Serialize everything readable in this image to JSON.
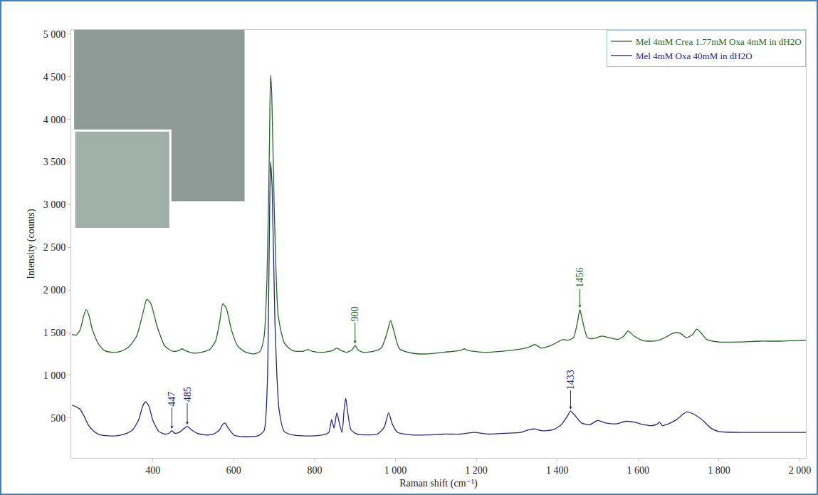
{
  "chart_data": {
    "type": "line",
    "x_label": "Raman shift (cm⁻¹)",
    "y_label": "Intensity (counts)",
    "xlim": [
      198,
      2015
    ],
    "ylim": [
      30,
      5050
    ],
    "xticks": [
      400,
      600,
      800,
      {
        "value": 1000,
        "label": "1 000"
      },
      {
        "value": 1200,
        "label": "1 200"
      },
      {
        "value": 1400,
        "label": "1 400"
      },
      {
        "value": 1600,
        "label": "1 600"
      },
      {
        "value": 1800,
        "label": "1 800"
      },
      {
        "value": 2000,
        "label": "2 000"
      }
    ],
    "yticks": [
      500,
      {
        "value": 1000,
        "label": "1 000"
      },
      {
        "value": 1500,
        "label": "1 500"
      },
      {
        "value": 2000,
        "label": "2 000"
      },
      {
        "value": 2500,
        "label": "2 500"
      },
      {
        "value": 3000,
        "label": "3 000"
      },
      {
        "value": 3500,
        "label": "3 500"
      },
      {
        "value": 4000,
        "label": "4 000"
      },
      {
        "value": 4500,
        "label": "4 500"
      },
      {
        "value": 5000,
        "label": "5 000"
      }
    ],
    "grid": false,
    "legend": "top right",
    "series": [
      {
        "name": "Mel 4mM Crea 1.77mM Oxa 4mM in dH2O",
        "color": "#1e6b1e",
        "x": [
          200,
          210,
          220,
          228,
          235,
          242,
          250,
          265,
          280,
          300,
          320,
          340,
          360,
          375,
          385,
          395,
          410,
          430,
          450,
          465,
          472,
          480,
          500,
          520,
          540,
          555,
          565,
          573,
          582,
          595,
          610,
          630,
          650,
          665,
          675,
          682,
          688,
          691,
          694,
          700,
          710,
          725,
          745,
          770,
          783,
          795,
          820,
          845,
          855,
          865,
          880,
          893,
          900,
          907,
          920,
          945,
          965,
          978,
          988,
          996,
          1010,
          1040,
          1080,
          1120,
          1160,
          1170,
          1180,
          1220,
          1260,
          1300,
          1330,
          1345,
          1360,
          1385,
          1405,
          1415,
          1425,
          1440,
          1450,
          1456,
          1462,
          1475,
          1490,
          1510,
          1530,
          1550,
          1565,
          1575,
          1590,
          1610,
          1630,
          1650,
          1670,
          1685,
          1695,
          1705,
          1720,
          1735,
          1745,
          1755,
          1770,
          1800,
          1850,
          1900,
          1950,
          2000,
          2015
        ],
        "values": [
          1480,
          1470,
          1530,
          1680,
          1770,
          1700,
          1540,
          1370,
          1290,
          1270,
          1280,
          1330,
          1460,
          1720,
          1890,
          1840,
          1580,
          1340,
          1280,
          1290,
          1310,
          1290,
          1260,
          1270,
          1300,
          1400,
          1620,
          1840,
          1780,
          1520,
          1340,
          1270,
          1250,
          1280,
          1450,
          2100,
          3600,
          4520,
          4300,
          3000,
          1700,
          1380,
          1290,
          1280,
          1300,
          1280,
          1270,
          1290,
          1320,
          1290,
          1270,
          1300,
          1350,
          1300,
          1270,
          1280,
          1320,
          1480,
          1640,
          1520,
          1310,
          1260,
          1250,
          1270,
          1290,
          1310,
          1290,
          1270,
          1280,
          1300,
          1330,
          1360,
          1320,
          1350,
          1400,
          1420,
          1410,
          1440,
          1620,
          1770,
          1650,
          1440,
          1430,
          1460,
          1440,
          1420,
          1460,
          1520,
          1460,
          1410,
          1400,
          1410,
          1450,
          1490,
          1500,
          1490,
          1440,
          1480,
          1540,
          1500,
          1420,
          1390,
          1390,
          1400,
          1400,
          1410,
          1410
        ]
      },
      {
        "name": "Mel 4mM Oxa 40mM in dH2O",
        "color": "#25258a",
        "x": [
          200,
          210,
          220,
          230,
          240,
          255,
          270,
          290,
          310,
          330,
          350,
          365,
          375,
          382,
          390,
          400,
          415,
          430,
          440,
          447,
          454,
          465,
          478,
          485,
          495,
          510,
          530,
          550,
          565,
          572,
          578,
          585,
          600,
          620,
          640,
          660,
          675,
          683,
          688,
          691,
          695,
          702,
          712,
          725,
          745,
          770,
          800,
          820,
          835,
          842,
          848,
          855,
          862,
          868,
          873,
          877,
          882,
          890,
          905,
          930,
          955,
          972,
          983,
          992,
          1005,
          1040,
          1080,
          1120,
          1160,
          1195,
          1230,
          1270,
          1310,
          1330,
          1345,
          1360,
          1390,
          1410,
          1425,
          1433,
          1442,
          1460,
          1480,
          1500,
          1520,
          1545,
          1570,
          1590,
          1615,
          1635,
          1648,
          1653,
          1660,
          1675,
          1695,
          1710,
          1720,
          1735,
          1760,
          1780,
          1800,
          1850,
          1900,
          1950,
          2000,
          2015
        ],
        "values": [
          650,
          630,
          600,
          520,
          420,
          340,
          300,
          290,
          290,
          310,
          360,
          480,
          640,
          690,
          640,
          470,
          340,
          310,
          320,
          350,
          320,
          330,
          380,
          400,
          360,
          320,
          300,
          310,
          360,
          420,
          440,
          390,
          300,
          280,
          280,
          290,
          350,
          900,
          2600,
          3500,
          3200,
          1600,
          600,
          340,
          300,
          290,
          290,
          300,
          330,
          480,
          380,
          560,
          420,
          330,
          600,
          730,
          560,
          360,
          310,
          300,
          310,
          390,
          560,
          430,
          330,
          300,
          300,
          310,
          310,
          330,
          310,
          320,
          330,
          360,
          370,
          350,
          360,
          420,
          520,
          580,
          540,
          440,
          420,
          470,
          440,
          430,
          460,
          450,
          420,
          410,
          430,
          450,
          410,
          430,
          480,
          540,
          570,
          550,
          470,
          380,
          340,
          330,
          330,
          330,
          330,
          330
        ]
      }
    ],
    "annotations": [
      {
        "x": 900,
        "y": 1370,
        "text": "900",
        "color": "#1e6b1e"
      },
      {
        "x": 1456,
        "y": 1790,
        "text": "1456",
        "color": "#1e6b1e"
      },
      {
        "x": 447,
        "y": 370,
        "text": "447",
        "color": "#25258a"
      },
      {
        "x": 485,
        "y": 420,
        "text": "485",
        "color": "#25258a"
      },
      {
        "x": 1433,
        "y": 600,
        "text": "1433",
        "color": "#25258a"
      }
    ]
  }
}
